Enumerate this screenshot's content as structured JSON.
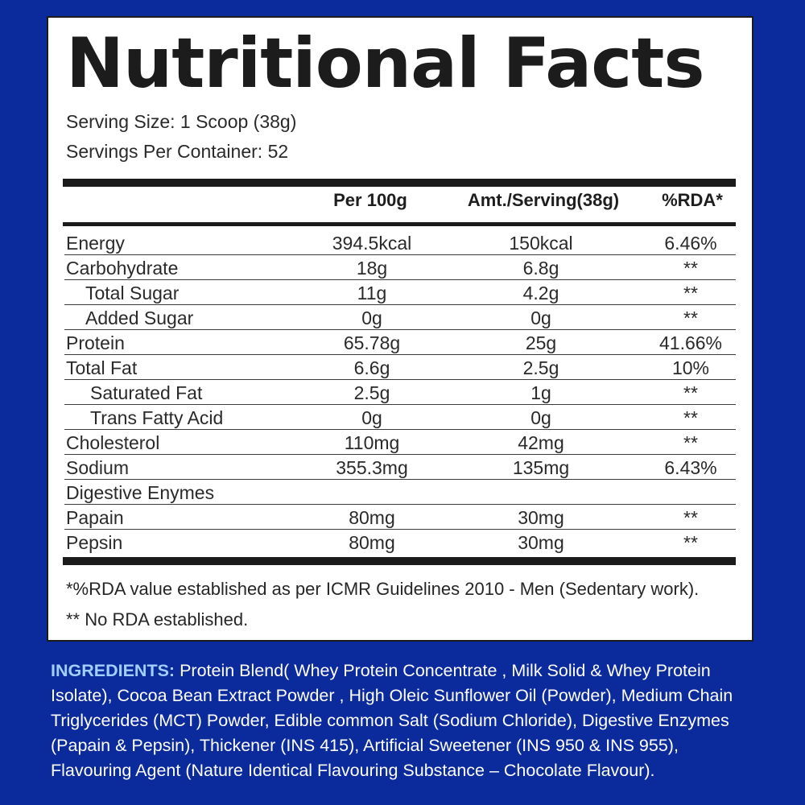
{
  "panel": {
    "title": "Nutritional Facts",
    "serving_size": "Serving Size: 1 Scoop (38g)",
    "servings_per_container": "Servings Per Container: 52"
  },
  "table": {
    "headers": [
      "",
      "Per 100g",
      "Amt./Serving(38g)",
      "%RDA*"
    ],
    "rows": [
      {
        "name": "Energy",
        "per100": "394.5kcal",
        "serving": "150kcal",
        "rda": "6.46%",
        "indent": 0
      },
      {
        "name": "Carbohydrate",
        "per100": "18g",
        "serving": "6.8g",
        "rda": "**",
        "indent": 0
      },
      {
        "name": "Total Sugar",
        "per100": "11g",
        "serving": "4.2g",
        "rda": "**",
        "indent": 1
      },
      {
        "name": "Added Sugar",
        "per100": "0g",
        "serving": "0g",
        "rda": "**",
        "indent": 1
      },
      {
        "name": "Protein",
        "per100": "65.78g",
        "serving": "25g",
        "rda": "41.66%",
        "indent": 0
      },
      {
        "name": "Total Fat",
        "per100": "6.6g",
        "serving": "2.5g",
        "rda": "10%",
        "indent": 0
      },
      {
        "name": "Saturated Fat",
        "per100": "2.5g",
        "serving": "1g",
        "rda": "**",
        "indent": 2
      },
      {
        "name": "Trans Fatty Acid",
        "per100": "0g",
        "serving": "0g",
        "rda": "**",
        "indent": 2
      },
      {
        "name": "Cholesterol",
        "per100": "110mg",
        "serving": "42mg",
        "rda": "**",
        "indent": 0
      },
      {
        "name": "Sodium",
        "per100": "355.3mg",
        "serving": "135mg",
        "rda": "6.43%",
        "indent": 0
      },
      {
        "name": "Digestive Enymes",
        "per100": "",
        "serving": "",
        "rda": "",
        "indent": 0
      },
      {
        "name": "Papain",
        "per100": "80mg",
        "serving": "30mg",
        "rda": "**",
        "indent": 0
      },
      {
        "name": "Pepsin",
        "per100": "80mg",
        "serving": "30mg",
        "rda": "**",
        "indent": 0
      }
    ]
  },
  "notes": {
    "rda_note": "*%RDA value established as per ICMR Guidelines 2010 - Men (Sedentary work).",
    "no_rda_note": "** No RDA established."
  },
  "ingredients": {
    "label": "INGREDIENTS:",
    "text": " Protein Blend( Whey Protein Concentrate , Milk Solid & Whey Protein Isolate), Cocoa Bean Extract Powder , High Oleic Sunflower Oil (Powder), Medium Chain Triglycerides (MCT) Powder, Edible common Salt (Sodium Chloride), Digestive Enzymes (Papain & Pepsin), Thickener (INS 415), Artificial Sweetener (INS 950 & INS 955), Flavouring Agent (Nature Identical Flavouring Substance – Chocolate Flavour)."
  },
  "colors": {
    "background": "#0b2b9c",
    "panel": "#ffffff",
    "ingredients_label": "#9fd0ff"
  }
}
